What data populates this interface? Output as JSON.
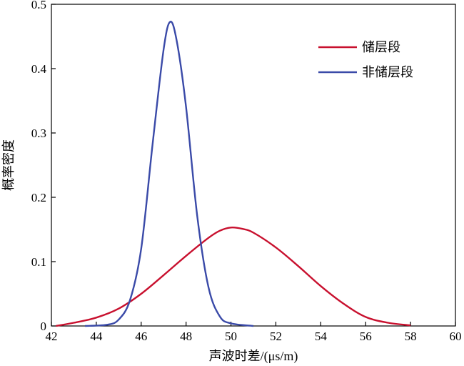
{
  "chart_data": {
    "type": "line",
    "title": "",
    "xlabel": "声波时差/(μs/m)",
    "ylabel": "概率密度",
    "xlim": [
      42,
      60
    ],
    "ylim": [
      0,
      0.5
    ],
    "x_ticks": [
      42,
      44,
      46,
      48,
      50,
      52,
      54,
      56,
      58,
      60
    ],
    "y_ticks": [
      0,
      0.1,
      0.2,
      0.3,
      0.4,
      0.5
    ],
    "y_tick_labels": [
      "0",
      "0.1",
      "0.2",
      "0.3",
      "0.4",
      "0.5"
    ],
    "grid": false,
    "legend_position": "top-right",
    "series": [
      {
        "name": "储层段",
        "color": "#c8102e",
        "points": [
          [
            42.2,
            0.0
          ],
          [
            43,
            0.005
          ],
          [
            44,
            0.013
          ],
          [
            45,
            0.027
          ],
          [
            46,
            0.05
          ],
          [
            47,
            0.079
          ],
          [
            48,
            0.109
          ],
          [
            49,
            0.137
          ],
          [
            49.5,
            0.148
          ],
          [
            50,
            0.153
          ],
          [
            50.5,
            0.151
          ],
          [
            51,
            0.145
          ],
          [
            52,
            0.122
          ],
          [
            53,
            0.093
          ],
          [
            54,
            0.062
          ],
          [
            55,
            0.035
          ],
          [
            56,
            0.014
          ],
          [
            57,
            0.005
          ],
          [
            58,
            0.001
          ]
        ]
      },
      {
        "name": "非储层段",
        "color": "#3a4aa8",
        "points": [
          [
            43.5,
            0.0
          ],
          [
            44.5,
            0.002
          ],
          [
            45,
            0.01
          ],
          [
            45.5,
            0.04
          ],
          [
            46,
            0.12
          ],
          [
            46.5,
            0.28
          ],
          [
            47,
            0.43
          ],
          [
            47.3,
            0.473
          ],
          [
            47.6,
            0.44
          ],
          [
            48,
            0.34
          ],
          [
            48.5,
            0.17
          ],
          [
            49,
            0.06
          ],
          [
            49.5,
            0.015
          ],
          [
            50,
            0.004
          ],
          [
            51,
            0.0
          ]
        ]
      }
    ]
  }
}
